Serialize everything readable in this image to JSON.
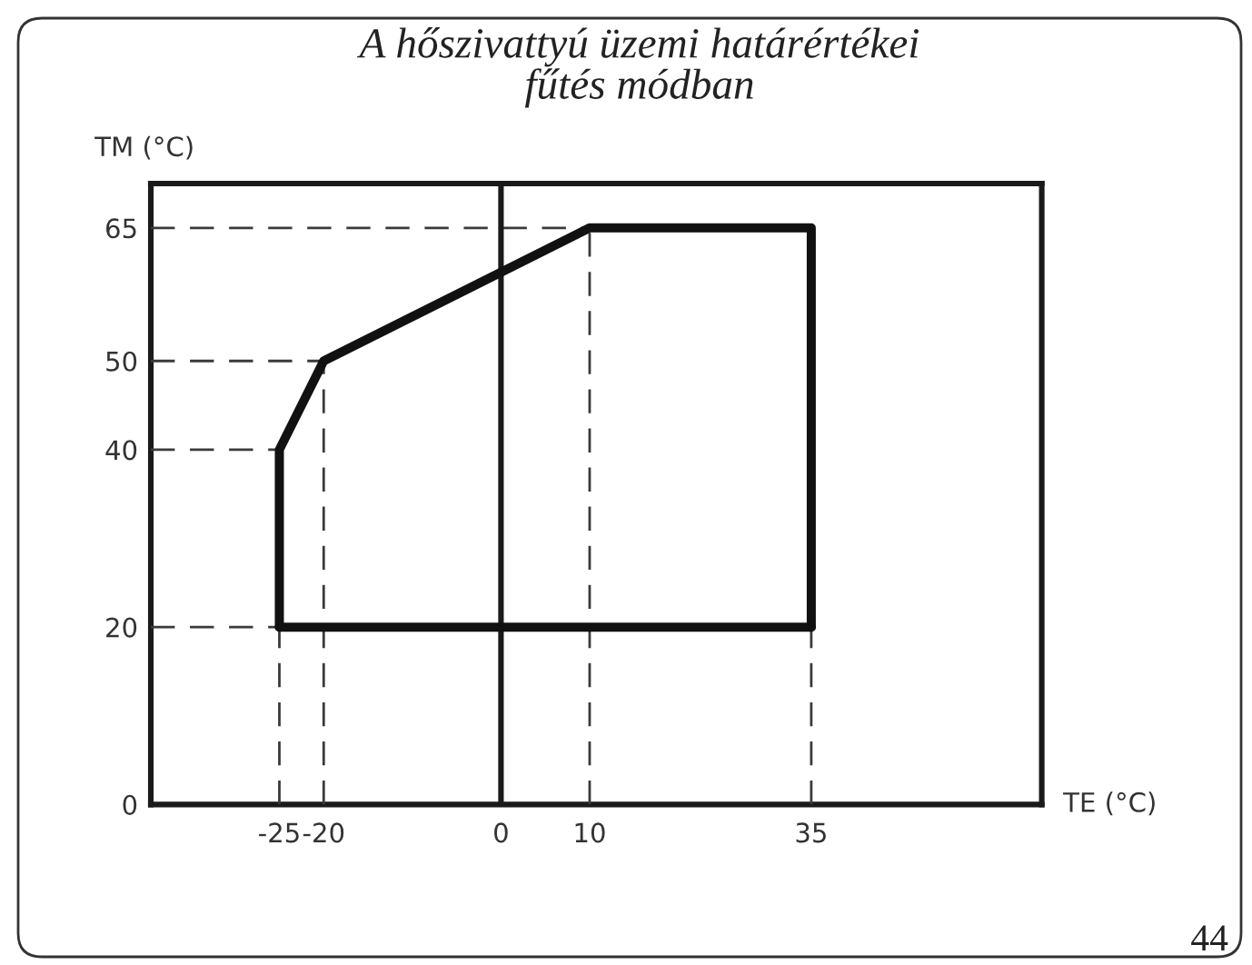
{
  "chart_data": {
    "type": "line",
    "title": "A hőszivattyú üzemi határértékei fűtés módban",
    "xlabel": "TE (°C)",
    "ylabel": "TM (°C)",
    "annotations": [
      "44"
    ],
    "series": [
      {
        "x": [
          -39.5,
          10
        ],
        "values": [
          65,
          65
        ],
        "color": "#3a3a3a",
        "line_style": "dashed"
      },
      {
        "x": [
          -39.5,
          -20
        ],
        "values": [
          50,
          50
        ],
        "color": "#3a3a3a",
        "line_style": "dashed"
      },
      {
        "x": [
          -39.5,
          -25
        ],
        "values": [
          40,
          40
        ],
        "color": "#3a3a3a",
        "line_style": "dashed"
      },
      {
        "x": [
          -39.5,
          -25
        ],
        "values": [
          20,
          20
        ],
        "color": "#3a3a3a",
        "line_style": "dashed"
      },
      {
        "x": [
          -25,
          -25
        ],
        "values": [
          0,
          20
        ],
        "color": "#3a3a3a",
        "line_style": "dashed"
      },
      {
        "x": [
          -20,
          -20
        ],
        "values": [
          0,
          50
        ],
        "color": "#3a3a3a",
        "line_style": "dashed"
      },
      {
        "x": [
          10,
          10
        ],
        "values": [
          0,
          65
        ],
        "color": "#3a3a3a",
        "line_style": "dashed"
      },
      {
        "x": [
          35,
          35
        ],
        "values": [
          0,
          20
        ],
        "color": "#3a3a3a",
        "line_style": "dashed"
      },
      {
        "x": [
          -25,
          -25,
          -20,
          10,
          35,
          35
        ],
        "values": [
          20,
          40,
          50,
          65,
          65,
          20
        ],
        "color": "#111111",
        "line_style": "solid"
      },
      {
        "x": [
          -25,
          35
        ],
        "values": [
          20,
          20
        ],
        "color": "#111111",
        "line_style": "solid"
      }
    ],
    "xlim": [
      -39.5,
      61
    ],
    "ylim": [
      0,
      70
    ],
    "xticks": [
      -25,
      -20,
      0,
      10,
      35
    ],
    "yticks": [
      0,
      20,
      40,
      50,
      65
    ],
    "ref_lines": [
      {
        "axis": "x",
        "value": 0,
        "color": "#1a1a1a",
        "line_style": "solid"
      }
    ]
  }
}
